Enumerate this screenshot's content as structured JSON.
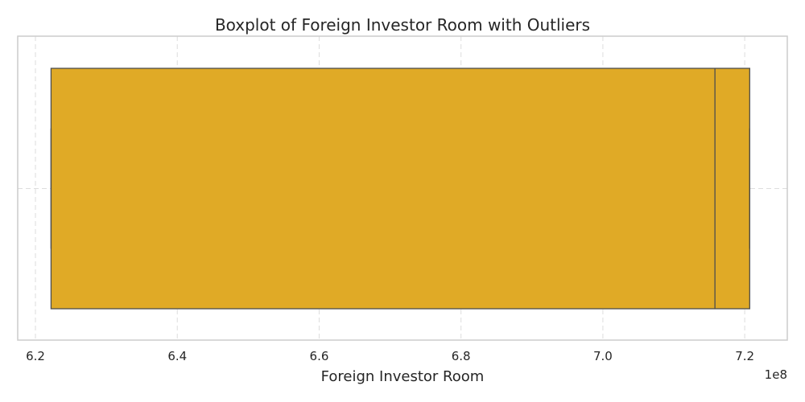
{
  "chart_data": {
    "type": "boxplot",
    "title": "Boxplot of Foreign Investor Room with Outliers",
    "xlabel": "Foreign Investor Room",
    "ylabel": "",
    "orientation": "horizontal",
    "scale_offset_label": "1e8",
    "xlim": [
      6.175,
      7.26
    ],
    "x_ticks": [
      6.2,
      6.4,
      6.6,
      6.8,
      7.0,
      7.2
    ],
    "x_tick_labels": [
      "6.2",
      "6.4",
      "6.6",
      "6.8",
      "7.0",
      "7.2"
    ],
    "grid": true,
    "box": {
      "whisker_low": 6.222,
      "q1": 6.222,
      "median": 7.158,
      "q3": 7.207,
      "whisker_high": 7.207,
      "outliers": []
    },
    "colors": {
      "box_fill": "#e0aa26",
      "box_edge": "#4d4d4d",
      "grid": "#dddddd",
      "frame": "#cccccc",
      "text": "#262626"
    }
  }
}
